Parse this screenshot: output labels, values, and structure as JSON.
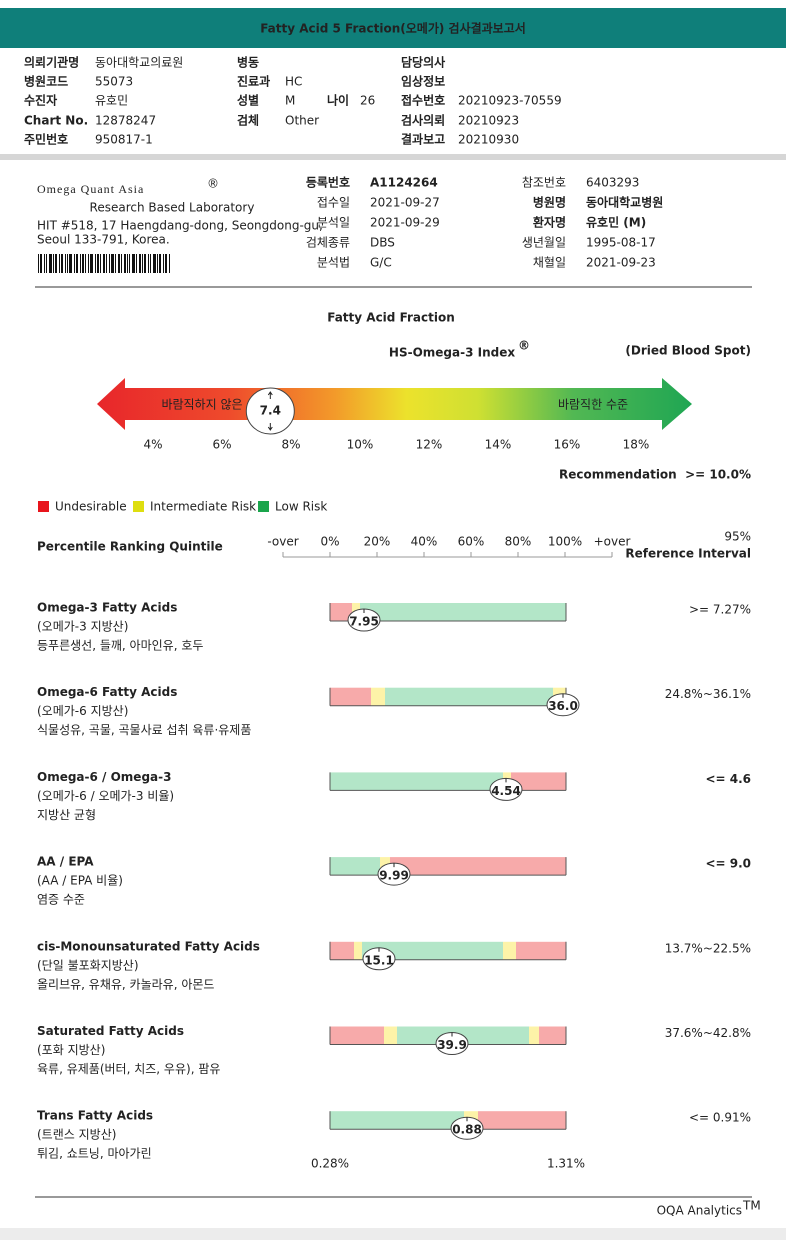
{
  "header": {
    "title": "Fatty Acid 5 Fraction(오메가) 검사결과보고서"
  },
  "patient_info": {
    "col1": [
      {
        "label": "의뢰기관명",
        "value": "동아대학교의료원"
      },
      {
        "label": "병원코드",
        "value": "55073"
      },
      {
        "label": "수진자",
        "value": "유호민"
      },
      {
        "label": "Chart No.",
        "value": "12878247"
      },
      {
        "label": "주민번호",
        "value": "950817-1"
      }
    ],
    "col2": [
      {
        "label": "병동"
      },
      {
        "label": "진료과",
        "value": "HC"
      },
      {
        "label": "성별",
        "value": "M",
        "age_label": "나이",
        "age_value": 26
      },
      {
        "label": "검체",
        "value": "Other"
      }
    ],
    "col3": [
      {
        "label": "담당의사"
      },
      {
        "label": "임상정보"
      },
      {
        "label": "접수번호",
        "value": "20210923-70559"
      },
      {
        "label": "검사의뢰",
        "value": "20210923"
      },
      {
        "label": "결과보고",
        "value": "20210930"
      }
    ]
  },
  "lab": {
    "name": "Omega Quant Asia",
    "mark": "®",
    "tagline": "Research Based Laboratory",
    "address": [
      "HIT #518, 17 Haengdang-dong, Seongdong-gu,",
      "Seoul 133-791, Korea."
    ]
  },
  "sample_info": {
    "left": [
      {
        "label": "등록번호",
        "value": "A1124264"
      },
      {
        "label": "접수일",
        "value": "2021-09-27"
      },
      {
        "label": "분석일",
        "value": "2021-09-29"
      },
      {
        "label": "검체종류",
        "value": "DBS"
      },
      {
        "label": "분석법",
        "value": "G/C"
      }
    ],
    "right": [
      {
        "label": "참조번호",
        "value": "6403293"
      },
      {
        "label": "병원명",
        "value": "동아대학교병원"
      },
      {
        "label": "환자명",
        "value": "유호민 (M)"
      },
      {
        "label": "생년월일",
        "value": "1995-08-17"
      },
      {
        "label": "채혈일",
        "value": "2021-09-23"
      }
    ]
  },
  "report": {
    "title": "Fatty Acid Fraction",
    "index_name": "HS-Omega-3 Index",
    "index_mark": "®",
    "specimen": "(Dried Blood Spot)",
    "low_label": "바람직하지 않은",
    "high_label": "바람직한 수준",
    "index_value": 7.4,
    "scale": [
      {
        "value": 4,
        "label": "4%"
      },
      {
        "value": 6,
        "label": "6%"
      },
      {
        "value": 8,
        "label": "8%"
      },
      {
        "value": 10,
        "label": "10%"
      },
      {
        "value": 12,
        "label": "12%"
      },
      {
        "value": 14,
        "label": "14%"
      },
      {
        "value": 16,
        "label": "16%"
      },
      {
        "value": 18,
        "label": "18%"
      }
    ],
    "recommendation": "Recommendation  >= 10.0%"
  },
  "legend": [
    {
      "name": "Undesirable",
      "color": "#e8141c"
    },
    {
      "name": "Intermediate Risk",
      "color": "#dede10"
    },
    {
      "name": "Low Risk",
      "color": "#1aa54c"
    }
  ],
  "percentile": {
    "title": "Percentile Ranking Quintile",
    "scale": [
      "-over",
      "0%",
      "20%",
      "40%",
      "60%",
      "80%",
      "100%",
      "+over"
    ],
    "reference_top": "95%",
    "reference_bottom": "Reference Interval"
  },
  "items": [
    {
      "name": "Omega-3 Fatty Acids",
      "korean": "(오메가-3 지방산)",
      "sources": "등푸른생선, 들깨, 아마인유, 호두",
      "value": "7.95",
      "reference": ">= 7.27%"
    },
    {
      "name": "Omega-6 Fatty Acids",
      "korean": "(오메가-6 지방산)",
      "sources": "식물성유, 곡물, 곡물사료 섭취 육류·유제품",
      "value": "36.0",
      "reference": "24.8%~36.1%"
    },
    {
      "name": "Omega-6 / Omega-3",
      "korean": "(오메가-6 / 오메가-3 비율)",
      "sources": "지방산 균형",
      "value": "4.54",
      "reference": "<= 4.6"
    },
    {
      "name": "AA / EPA",
      "korean": "(AA / EPA 비율)",
      "sources": "염증 수준",
      "value": "9.99",
      "reference": "<= 9.0"
    },
    {
      "name": "cis-Monounsaturated Fatty Acids",
      "korean": "(단일 불포화지방산)",
      "sources": "올리브유, 유채유, 카놀라유, 아몬드",
      "value": "15.1",
      "reference": "13.7%~22.5%"
    },
    {
      "name": "Saturated Fatty Acids",
      "korean": "(포화 지방산)",
      "sources": "육류, 유제품(버터, 치즈, 우유), 팜유",
      "value": "39.9",
      "reference": "37.6%~42.8%"
    },
    {
      "name": "Trans Fatty Acids",
      "korean": "(트랜스 지방산)",
      "sources": "튀김, 쇼트닝, 마아가린",
      "value": "0.88",
      "reference": "<= 0.91%",
      "range_low": "0.28%",
      "range_high": "1.31%"
    }
  ],
  "footer": {
    "brand": "OQA Analytics",
    "mark": "TM"
  }
}
